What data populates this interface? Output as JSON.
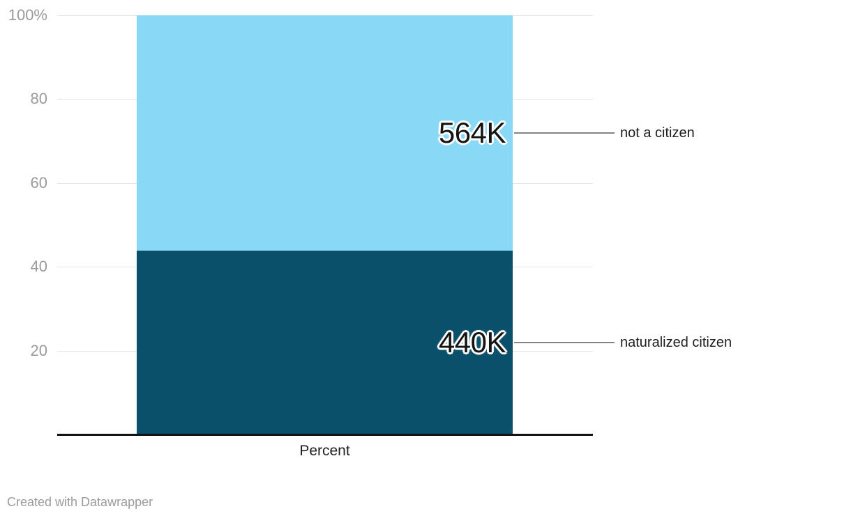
{
  "chart_data": {
    "type": "bar",
    "subtype": "stacked-column-100pct",
    "categories": [
      "Percent"
    ],
    "xlabel": "Percent",
    "ylabel": "",
    "ylim": [
      0,
      100
    ],
    "grid": true,
    "legend_position": "right-annotations",
    "yticks": [
      {
        "value": 100,
        "label": "100%"
      },
      {
        "value": 80,
        "label": "80"
      },
      {
        "value": 60,
        "label": "60"
      },
      {
        "value": 40,
        "label": "40"
      },
      {
        "value": 20,
        "label": "20"
      }
    ],
    "series": [
      {
        "name": "naturalized citizen",
        "value_label": "440K",
        "value_thousands": 440,
        "percent": 43.8,
        "color": "#0a506b"
      },
      {
        "name": "not a citizen",
        "value_label": "564K",
        "value_thousands": 564,
        "percent": 56.2,
        "color": "#89d9f6"
      }
    ]
  },
  "colors": {
    "gridline": "#e4e4e4",
    "axis_line": "#131313",
    "tick_label": "#9a9a9a",
    "value_label": "#141414",
    "connector": "#858585",
    "series_label": "#1c1c1c",
    "background": "#ffffff"
  },
  "footer": {
    "credit": "Created with Datawrapper"
  }
}
